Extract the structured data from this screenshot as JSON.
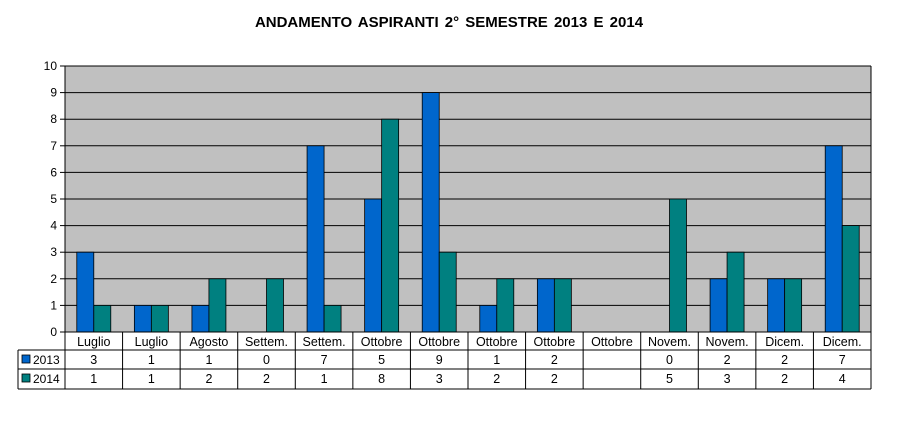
{
  "chart_data": {
    "type": "bar",
    "title": "ANDAMENTO ASPIRANTI 2°  SEMESTRE 2013 E 2014",
    "categories": [
      "Luglio",
      "Luglio",
      "Agosto",
      "Settem.",
      "Settem.",
      "Ottobre",
      "Ottobre",
      "Ottobre",
      "Ottobre",
      "Ottobre",
      "Novem.",
      "Novem.",
      "Dicem.",
      "Dicem."
    ],
    "series": [
      {
        "name": "2013",
        "color": "#0066CC",
        "values": [
          3,
          1,
          1,
          0,
          7,
          5,
          9,
          1,
          2,
          null,
          0,
          2,
          2,
          7
        ],
        "labels": [
          "3",
          "1",
          "1",
          "0",
          "7",
          "5",
          "9",
          "1",
          "2",
          "",
          "0",
          "2",
          "2",
          "7"
        ]
      },
      {
        "name": "2014",
        "color": "#008080",
        "values": [
          1,
          1,
          2,
          2,
          1,
          8,
          3,
          2,
          2,
          null,
          5,
          3,
          2,
          4
        ],
        "labels": [
          "1",
          "1",
          "2",
          "2",
          "1",
          "8",
          "3",
          "2",
          "2",
          "",
          "5",
          "3",
          "2",
          "4"
        ]
      }
    ],
    "ylim": [
      0,
      10
    ],
    "yticks": [
      0,
      1,
      2,
      3,
      4,
      5,
      6,
      7,
      8,
      9,
      10
    ],
    "plot_background": "#C0C0C0",
    "grid": true,
    "legend": "data-table"
  }
}
